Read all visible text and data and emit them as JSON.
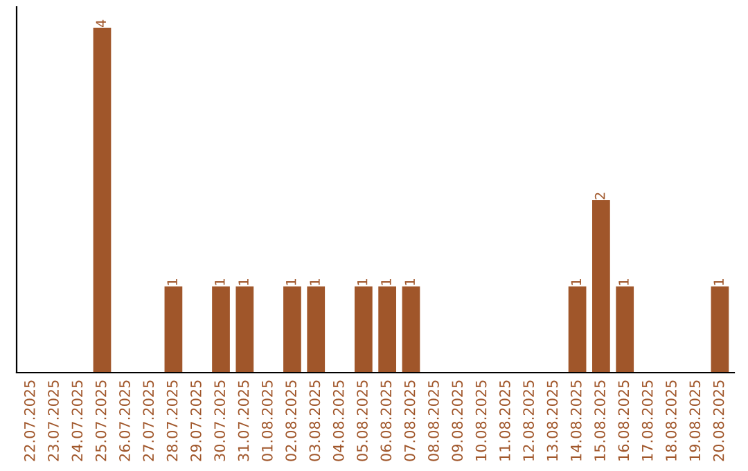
{
  "chart_data": {
    "type": "bar",
    "categories": [
      "22.07.2025",
      "23.07.2025",
      "24.07.2025",
      "25.07.2025",
      "26.07.2025",
      "27.07.2025",
      "28.07.2025",
      "29.07.2025",
      "30.07.2025",
      "31.07.2025",
      "01.08.2025",
      "02.08.2025",
      "03.08.2025",
      "04.08.2025",
      "05.08.2025",
      "06.08.2025",
      "07.08.2025",
      "08.08.2025",
      "09.08.2025",
      "10.08.2025",
      "11.08.2025",
      "12.08.2025",
      "13.08.2025",
      "14.08.2025",
      "15.08.2025",
      "16.08.2025",
      "17.08.2025",
      "18.08.2025",
      "19.08.2025",
      "20.08.2025"
    ],
    "values": [
      0,
      0,
      0,
      4,
      0,
      0,
      1,
      0,
      1,
      1,
      0,
      1,
      1,
      0,
      1,
      1,
      1,
      0,
      0,
      0,
      0,
      0,
      0,
      1,
      2,
      1,
      0,
      0,
      0,
      1
    ],
    "value_labels": [
      null,
      null,
      null,
      "4",
      null,
      null,
      "1",
      null,
      "1",
      "1",
      null,
      "1",
      "1",
      null,
      "1",
      "1",
      "1",
      null,
      null,
      null,
      null,
      null,
      null,
      "1",
      "2",
      "1",
      null,
      null,
      null,
      "1"
    ],
    "color": "#a0562a",
    "tick_labels": "x",
    "grid": false
  }
}
